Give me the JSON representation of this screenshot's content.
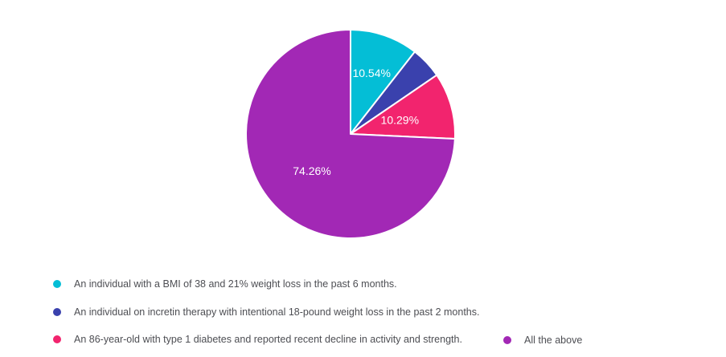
{
  "page": {
    "background": "#ffffff"
  },
  "chart_data": {
    "type": "pie",
    "title": "",
    "start_angle_deg": 0,
    "direction": "clockwise",
    "label_color": "#ffffff",
    "separator_color": "#ffffff",
    "legend_position": "bottom",
    "slices": [
      {
        "name": "An individual with a BMI of 38 and 21% weight loss in the past 6 months.",
        "value": 10.54,
        "label": "10.54%",
        "color": "#04BED6",
        "label_r_frac": 0.62
      },
      {
        "name": "An individual on incretin therapy with intentional 18-pound weight loss in the past 2 months.",
        "value": 4.91,
        "label": "",
        "color": "#3A41AD",
        "label_r_frac": 0.55
      },
      {
        "name": "An 86-year-old with type 1 diabetes and reported recent decline in activity and strength.",
        "value": 10.29,
        "label": "10.29%",
        "color": "#F2246E",
        "label_r_frac": 0.49
      },
      {
        "name": "All the above",
        "value": 74.26,
        "label": "74.26%",
        "color": "#A228B5",
        "label_r_frac": 0.51
      }
    ]
  }
}
